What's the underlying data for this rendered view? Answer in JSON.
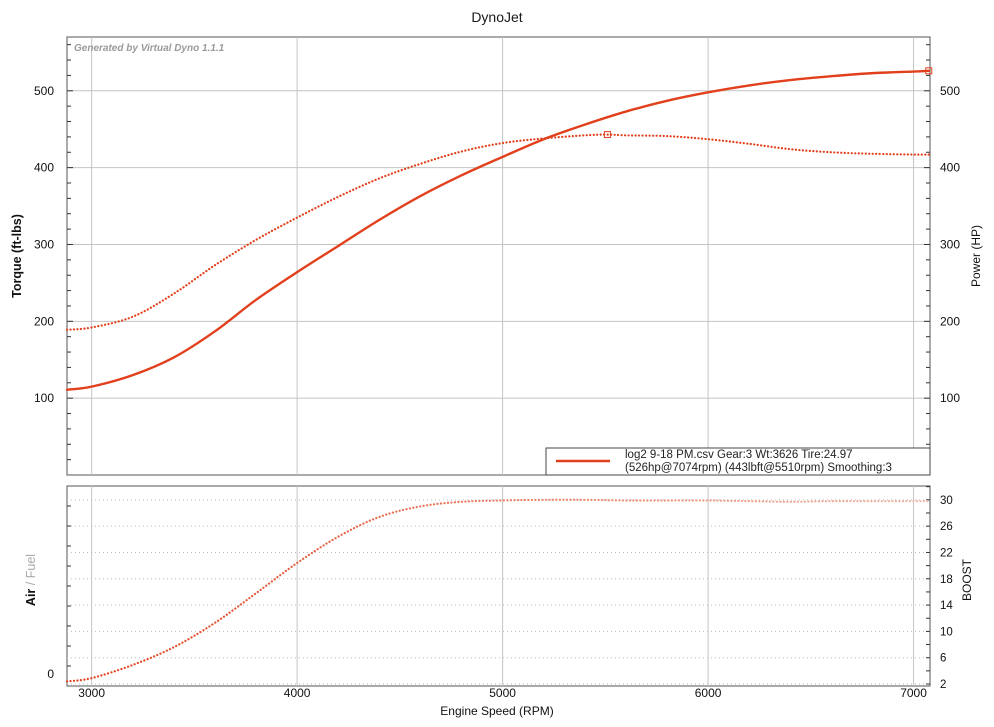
{
  "chart_data": [
    {
      "id": "main",
      "type": "line",
      "title": "DynoJet",
      "watermark": "Generated by Virtual Dyno 1.1.1",
      "xlabel": "Engine Speed (RPM)",
      "ylabel_left": "Torque (ft-lbs)",
      "ylabel_right": "Power (HP)",
      "xlim": [
        2880,
        7080
      ],
      "ylim_left": [
        0,
        570
      ],
      "ylim_right": [
        0,
        570
      ],
      "x_ticks": [
        3000,
        4000,
        5000,
        6000,
        7000
      ],
      "y_ticks": [
        100,
        200,
        300,
        400,
        500
      ],
      "grid": true,
      "series": [
        {
          "name": "Power",
          "axis": "right",
          "style": "solid",
          "color": "#e2401c",
          "x": [
            2880,
            3000,
            3200,
            3400,
            3600,
            3800,
            4000,
            4200,
            4400,
            4600,
            4800,
            5000,
            5200,
            5400,
            5600,
            5800,
            6000,
            6200,
            6400,
            6600,
            6800,
            7000,
            7074
          ],
          "y": [
            111,
            115,
            130,
            153,
            187,
            228,
            264,
            298,
            332,
            363,
            390,
            414,
            437,
            456,
            473,
            487,
            498,
            507,
            514,
            519,
            523,
            525,
            526
          ]
        },
        {
          "name": "Torque",
          "axis": "left",
          "style": "dotted",
          "color": "#e2401c",
          "x": [
            2880,
            3000,
            3200,
            3400,
            3600,
            3800,
            4000,
            4200,
            4400,
            4600,
            4800,
            5000,
            5200,
            5400,
            5510,
            5600,
            5800,
            6000,
            6200,
            6400,
            6600,
            6800,
            7000,
            7074
          ],
          "y": [
            189,
            192,
            206,
            236,
            273,
            306,
            335,
            362,
            386,
            405,
            421,
            432,
            438,
            442,
            443,
            442,
            441,
            437,
            431,
            424,
            420,
            418,
            417,
            417
          ]
        }
      ],
      "peak_markers": [
        {
          "x": 5510,
          "y": 443
        },
        {
          "x": 7074,
          "y": 526
        }
      ],
      "legend": {
        "placement": "bottom-right",
        "line1": "log2 9-18 PM.csv Gear:3 Wt:3626 Tire:24.97",
        "line2": "(526hp@7074rpm) (443lbft@5510rpm) Smoothing:3"
      }
    },
    {
      "id": "boost",
      "type": "line",
      "xlabel": "Engine Speed (RPM)",
      "ylabel_left_part1": "Air",
      "ylabel_left_sep": " / ",
      "ylabel_left_part2": "Fuel",
      "ylabel_right": "BOOST",
      "left_ticks_label": "0",
      "xlim": [
        2880,
        7080
      ],
      "ylim_right": [
        1.7,
        32.1
      ],
      "y_ticks_right": [
        2,
        6,
        10,
        14,
        18,
        22,
        26,
        30
      ],
      "series": [
        {
          "name": "Boost",
          "axis": "right",
          "style": "dotted",
          "color_start": "#e2401c",
          "color_end": "#f2b7a4",
          "x": [
            2880,
            3000,
            3200,
            3400,
            3600,
            3800,
            4000,
            4200,
            4400,
            4600,
            4800,
            5000,
            5200,
            5400,
            5600,
            5800,
            6000,
            6200,
            6400,
            6600,
            6800,
            7000,
            7074
          ],
          "y": [
            2.4,
            2.9,
            4.9,
            7.6,
            11.3,
            15.8,
            20.4,
            24.4,
            27.4,
            29.0,
            29.7,
            29.9,
            30.0,
            30.0,
            29.9,
            29.9,
            29.9,
            29.8,
            29.7,
            29.8,
            29.8,
            29.8,
            29.8
          ]
        }
      ]
    }
  ]
}
